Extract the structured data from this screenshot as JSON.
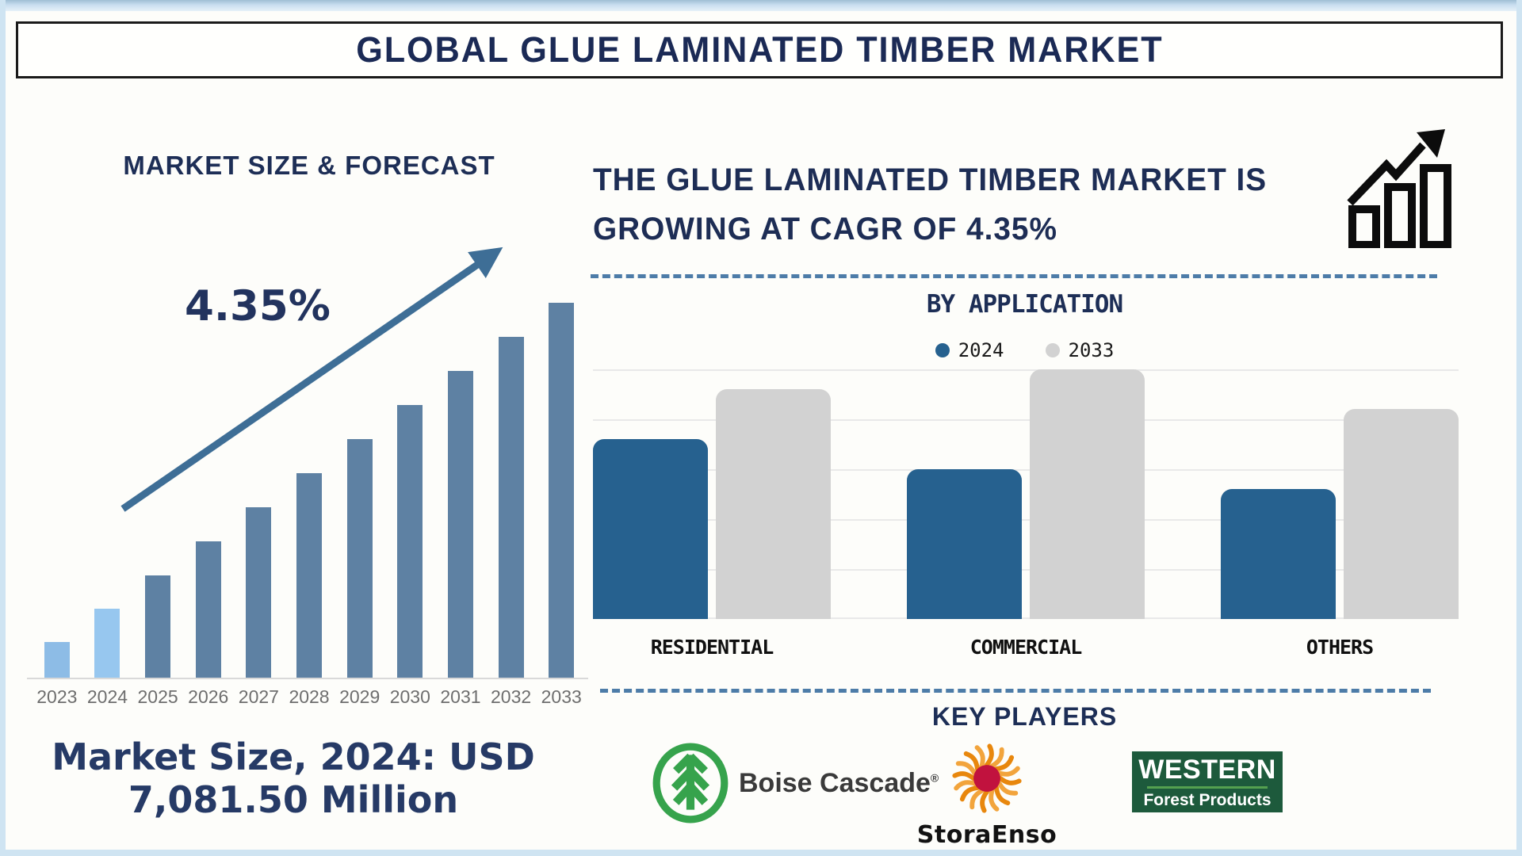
{
  "header": {
    "title": "GLOBAL GLUE LAMINATED TIMBER MARKET"
  },
  "left_panel": {
    "market_size_line1": "Market Size, 2024: USD",
    "market_size_line2": "7,081.50 Million"
  },
  "right_panel": {
    "headline_line1": "THE GLUE LAMINATED TIMBER MARKET IS",
    "headline_line2": "GROWING AT CAGR OF 4.35%",
    "growth_icon": "growth-chart-icon",
    "key_players_title": "KEY PLAYERS",
    "key_players": [
      {
        "name": "Boise Cascade",
        "reg_mark": "®",
        "icon": "boise-cascade-tree-logo"
      },
      {
        "name": "StoraEnso",
        "icon": "storaenso-sunburst-logo"
      },
      {
        "name_line1": "WESTERN",
        "name_line2": "Forest Products",
        "icon": "western-forest-products-logo"
      }
    ]
  },
  "chart_data": [
    {
      "type": "bar",
      "title": "MARKET SIZE & FORECAST",
      "categories": [
        "2023",
        "2024",
        "2025",
        "2026",
        "2027",
        "2028",
        "2029",
        "2030",
        "2031",
        "2032",
        "2033"
      ],
      "values": [
        45,
        87,
        129,
        172,
        215,
        258,
        301,
        344,
        387,
        430,
        473
      ],
      "value_note": "relative bar heights in px; chart shows steady growth, no value axis displayed",
      "annotation": "4.35%",
      "xlabel": "",
      "ylabel": "",
      "grid": false,
      "colors": {
        "historic": [
          "#8dbce6",
          "#97c7ef"
        ],
        "forecast": "#5e81a3"
      }
    },
    {
      "type": "bar",
      "title": "BY APPLICATION",
      "categories": [
        "RESIDENTIAL",
        "COMMERCIAL",
        "OTHERS"
      ],
      "series": [
        {
          "name": "2024",
          "values": [
            3.6,
            3.0,
            2.6
          ]
        },
        {
          "name": "2033",
          "values": [
            4.6,
            5.0,
            4.2
          ]
        }
      ],
      "ylim": [
        0,
        5
      ],
      "grid": true,
      "legend_position": "top",
      "value_note": "relative units estimated from unlabeled gridlines",
      "colors": {
        "2024": "#26618f",
        "2033": "#d2d2d2"
      }
    }
  ]
}
